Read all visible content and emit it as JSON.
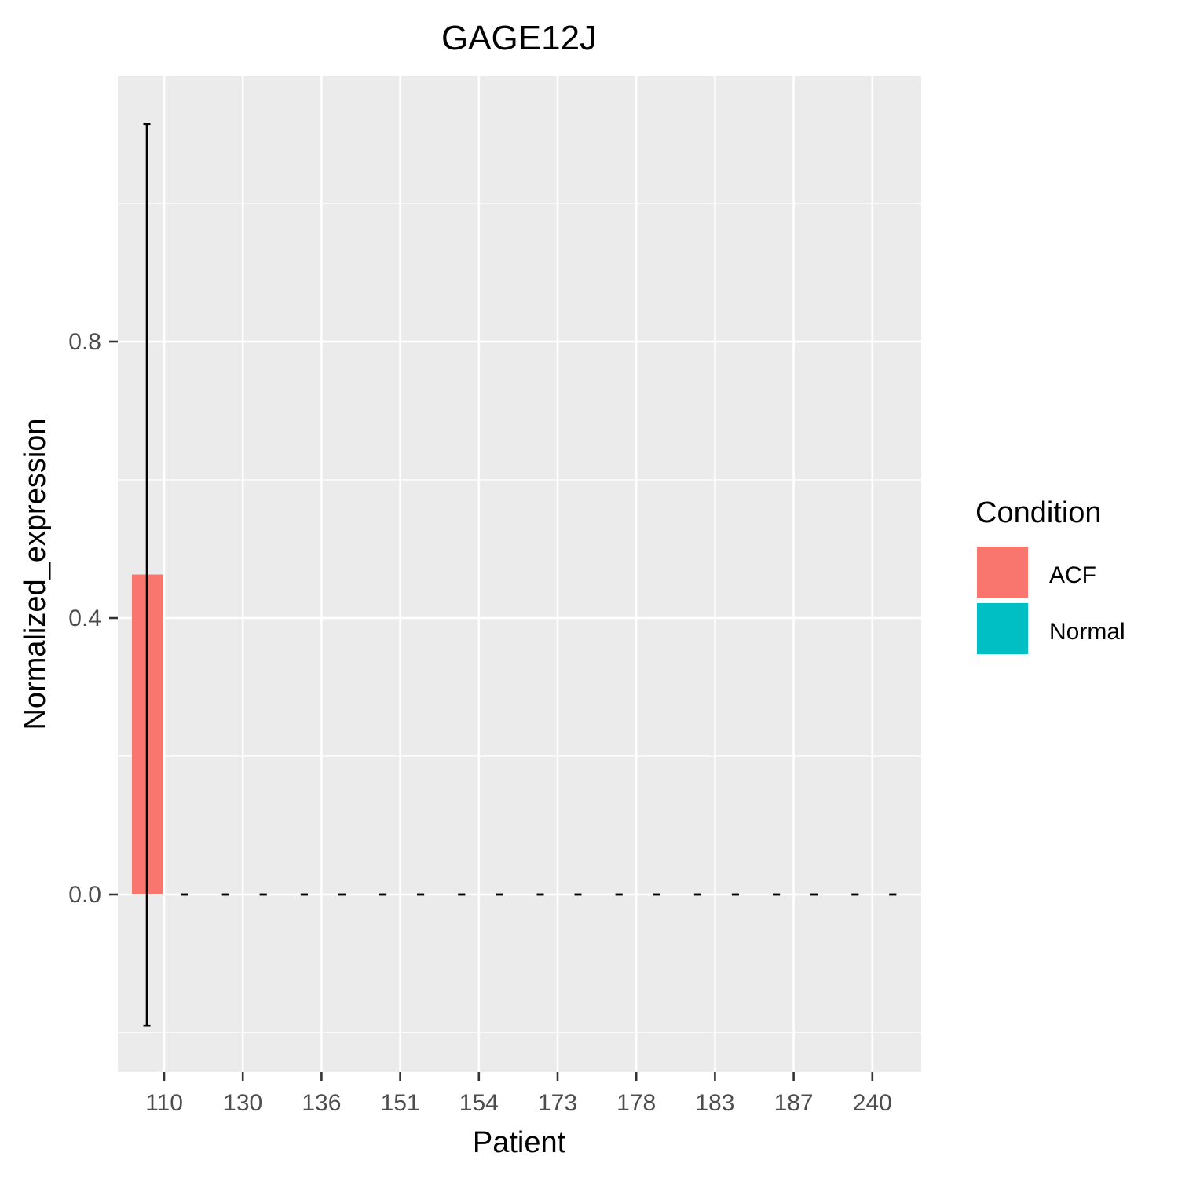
{
  "chart_data": {
    "type": "bar",
    "title": "GAGE12J",
    "xlabel": "Patient",
    "ylabel": "Normalized_expression",
    "categories": [
      "110",
      "130",
      "136",
      "151",
      "154",
      "173",
      "178",
      "183",
      "187",
      "240"
    ],
    "ylim": [
      -0.2,
      1.1
    ],
    "y_ticks": [
      0.0,
      0.4,
      0.8
    ],
    "y_tick_labels": [
      "0.0",
      "0.4",
      "0.8"
    ],
    "grid": true,
    "legend": {
      "title": "Condition",
      "placement": "right",
      "entries": [
        {
          "name": "ACF",
          "color": "#F8766D"
        },
        {
          "name": "Normal",
          "color": "#00BFC4"
        }
      ]
    },
    "series": [
      {
        "name": "ACF",
        "color": "#F8766D",
        "values": [
          0.463,
          0,
          0,
          0,
          0,
          0,
          0,
          0,
          0,
          0
        ],
        "err_low": [
          -0.19,
          0,
          0,
          0,
          0,
          0,
          0,
          0,
          0,
          0
        ],
        "err_high": [
          1.115,
          0,
          0,
          0,
          0,
          0,
          0,
          0,
          0,
          0
        ]
      },
      {
        "name": "Normal",
        "color": "#00BFC4",
        "values": [
          0,
          0,
          0,
          0,
          0,
          0,
          0,
          0,
          0,
          0
        ],
        "err_low": [
          0,
          0,
          0,
          0,
          0,
          0,
          0,
          0,
          0,
          0
        ],
        "err_high": [
          0,
          0,
          0,
          0,
          0,
          0,
          0,
          0,
          0,
          0
        ]
      }
    ]
  }
}
